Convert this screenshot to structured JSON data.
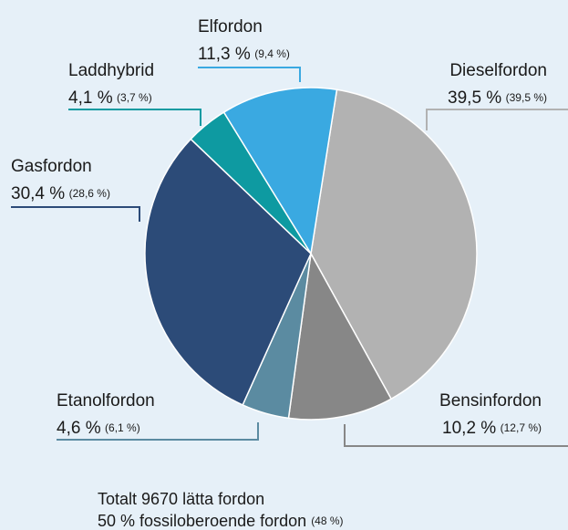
{
  "chart_data": {
    "type": "pie",
    "categories": [
      "Dieselfordon",
      "Bensinfordon",
      "Etanolfordon",
      "Gasfordon",
      "Laddhybrid",
      "Elfordon"
    ],
    "values": [
      39.5,
      10.2,
      4.6,
      30.4,
      4.1,
      11.3
    ],
    "value_labels": [
      "39,5 %",
      "10,2 %",
      "4,6 %",
      "30,4 %",
      "4,1 %",
      "11,3 %"
    ],
    "previous_values": [
      39.5,
      12.7,
      6.1,
      28.6,
      3.7,
      9.4
    ],
    "previous_value_labels": [
      "(39,5 %)",
      "(12,7 %)",
      "(6,1 %)",
      "(28,6 %)",
      "(3,7 %)",
      "(9,4 %)"
    ],
    "colors": [
      "#b2b2b2",
      "#878787",
      "#5b8ba1",
      "#2c4b78",
      "#0e9aa1",
      "#3aa9e1"
    ],
    "footer": [
      "Totalt 9670 lätta fordon",
      "50 % fossiloberoende fordon",
      "(48 %)"
    ]
  }
}
